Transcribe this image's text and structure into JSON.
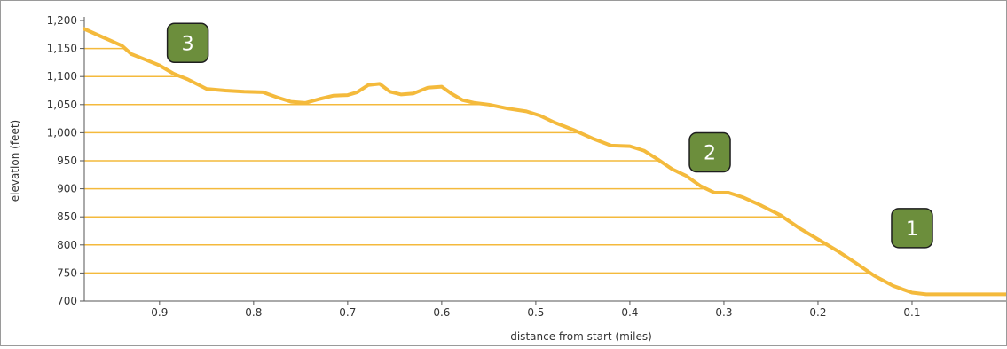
{
  "chart_data": {
    "type": "area",
    "xlabel": "distance from start (miles)",
    "ylabel": "elevation (feet)",
    "x_reversed": true,
    "xlim": [
      0,
      0.98
    ],
    "ylim": [
      700,
      1200
    ],
    "x_ticks": [
      0.9,
      0.8,
      0.7,
      0.6,
      0.5,
      0.4,
      0.3,
      0.2,
      0.1
    ],
    "x_tick_labels": [
      "0.9",
      "0.8",
      "0.7",
      "0.6",
      "0.5",
      "0.4",
      "0.3",
      "0.2",
      "0.1"
    ],
    "y_ticks": [
      700,
      750,
      800,
      850,
      900,
      950,
      1000,
      1050,
      1100,
      1150,
      1200
    ],
    "y_tick_labels": [
      "700",
      "750",
      "800",
      "850",
      "900",
      "950",
      "1,000",
      "1,050",
      "1,100",
      "1,150",
      "1,200"
    ],
    "grid": "horizontal lines under the profile",
    "colors": {
      "line": "#F4BA3C",
      "grid": "#F4BA3C",
      "marker_fill": "#6C8E3C",
      "marker_border": "#1e1e1e",
      "marker_text": "#ffffff"
    },
    "series": [
      {
        "x": [
          0.98,
          0.96,
          0.94,
          0.93,
          0.915,
          0.9,
          0.885,
          0.87,
          0.85,
          0.83,
          0.81,
          0.79,
          0.775,
          0.76,
          0.745,
          0.73,
          0.715,
          0.7,
          0.69,
          0.678,
          0.666,
          0.655,
          0.643,
          0.63,
          0.615,
          0.6,
          0.59,
          0.578,
          0.565,
          0.55,
          0.53,
          0.51,
          0.495,
          0.48,
          0.46,
          0.44,
          0.42,
          0.4,
          0.385,
          0.37,
          0.355,
          0.34,
          0.325,
          0.31,
          0.295,
          0.28,
          0.26,
          0.24,
          0.22,
          0.2,
          0.18,
          0.16,
          0.14,
          0.12,
          0.1,
          0.085,
          0.07,
          0.05,
          0.0
        ],
        "y": [
          1185,
          1170,
          1155,
          1140,
          1130,
          1120,
          1105,
          1095,
          1078,
          1075,
          1073,
          1072,
          1063,
          1055,
          1053,
          1060,
          1066,
          1067,
          1072,
          1085,
          1087,
          1073,
          1068,
          1070,
          1080,
          1082,
          1070,
          1058,
          1053,
          1050,
          1043,
          1038,
          1030,
          1018,
          1005,
          990,
          977,
          976,
          968,
          952,
          935,
          923,
          905,
          893,
          893,
          885,
          870,
          853,
          830,
          810,
          790,
          768,
          745,
          727,
          715,
          712,
          712,
          712,
          712
        ]
      }
    ],
    "annotations": [
      {
        "label": "3",
        "x": 0.87,
        "y": 1160
      },
      {
        "label": "2",
        "x": 0.315,
        "y": 965
      },
      {
        "label": "1",
        "x": 0.1,
        "y": 830
      }
    ]
  }
}
